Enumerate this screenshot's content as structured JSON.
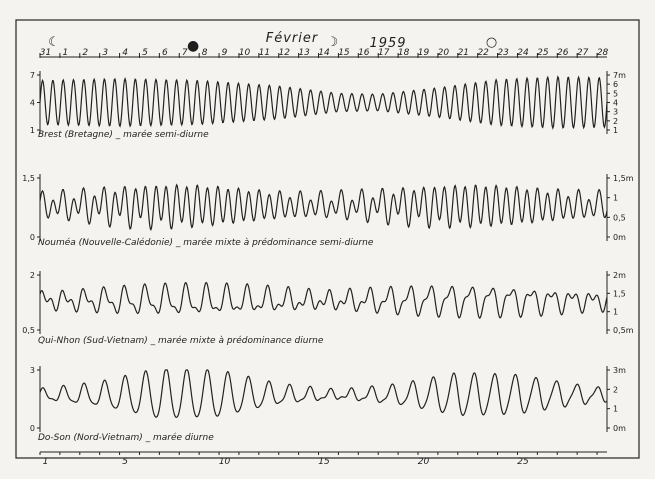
{
  "chart_data": {
    "type": "line",
    "title": "Février",
    "year": "1959",
    "top_day_labels": [
      "31",
      "1",
      "2",
      "3",
      "4",
      "5",
      "6",
      "7",
      "8",
      "9",
      "10",
      "11",
      "12",
      "13",
      "14",
      "15",
      "16",
      "17",
      "18",
      "19",
      "20",
      "21",
      "22",
      "23",
      "24",
      "25",
      "26",
      "27",
      "28"
    ],
    "bottom_day_labels": [
      "1",
      "5",
      "10",
      "15",
      "20",
      "25"
    ],
    "moon_phases": [
      {
        "symbol": "☾",
        "day": 1,
        "name": "last-quarter"
      },
      {
        "symbol": "●",
        "day": 8,
        "name": "new-moon"
      },
      {
        "symbol": "☽",
        "day": 15,
        "name": "first-quarter"
      },
      {
        "symbol": "○",
        "day": 23,
        "name": "full-moon"
      }
    ],
    "x_range_days": [
      0,
      28.5
    ],
    "panels": [
      {
        "caption": "Brest (Bretagne) _ marée semi-diurne",
        "left_ticks": [
          "7",
          "4",
          "1"
        ],
        "right_ticks": [
          "7m",
          "6",
          "5",
          "4",
          "3",
          "2",
          "1"
        ],
        "ylim": [
          1,
          7
        ],
        "cycles_per_day": 1.93,
        "mean": 4.0,
        "amplitude_envelope": [
          {
            "day": 0,
            "amp": 2.4
          },
          {
            "day": 4,
            "amp": 2.6
          },
          {
            "day": 8,
            "amp": 2.4
          },
          {
            "day": 12,
            "amp": 1.8
          },
          {
            "day": 15,
            "amp": 1.0
          },
          {
            "day": 17,
            "amp": 0.9
          },
          {
            "day": 20,
            "amp": 1.6
          },
          {
            "day": 23,
            "amp": 2.5
          },
          {
            "day": 26,
            "amp": 2.8
          },
          {
            "day": 28.5,
            "amp": 2.7
          }
        ]
      },
      {
        "caption": "Nouméa (Nouvelle-Calédonie) _ marée mixte à prédominance semi-diurne",
        "left_ticks": [
          "1,5",
          "0"
        ],
        "right_ticks": [
          "1,5m",
          "1",
          "0,5",
          "0m"
        ],
        "ylim": [
          0,
          1.5
        ],
        "mean": 0.8,
        "semidiurnal_amp": 0.5,
        "diurnal_amp": 0.18
      },
      {
        "caption": "Qui-Nhon (Sud-Vietnam) _ marée mixte à prédominance diurne",
        "left_ticks": [
          "2",
          "0,5"
        ],
        "right_ticks": [
          "2m",
          "1,5",
          "1",
          "0,5m"
        ],
        "ylim": [
          0.5,
          2
        ],
        "mean": 1.3,
        "semidiurnal_amp": 0.15,
        "diurnal_amp": 0.35
      },
      {
        "caption": "Do-Son (Nord-Vietnam) _ marée diurne",
        "left_ticks": [
          "3",
          "0"
        ],
        "right_ticks": [
          "3m",
          "2",
          "1",
          "0m"
        ],
        "ylim": [
          0,
          3
        ],
        "mean": 1.7,
        "cycles_per_day": 0.97,
        "amplitude_envelope": [
          {
            "day": 0,
            "amp": 0.25
          },
          {
            "day": 3,
            "amp": 0.6
          },
          {
            "day": 6,
            "amp": 1.3
          },
          {
            "day": 9,
            "amp": 1.2
          },
          {
            "day": 12,
            "amp": 0.5
          },
          {
            "day": 15,
            "amp": 0.2
          },
          {
            "day": 18,
            "amp": 0.5
          },
          {
            "day": 21,
            "amp": 1.1
          },
          {
            "day": 24,
            "amp": 1.0
          },
          {
            "day": 27,
            "amp": 0.5
          },
          {
            "day": 28.5,
            "amp": 0.3
          }
        ]
      }
    ]
  }
}
